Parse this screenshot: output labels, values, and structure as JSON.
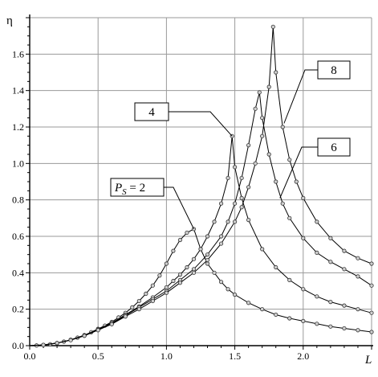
{
  "chart_data": {
    "type": "line",
    "xlabel": "L",
    "ylabel": "η",
    "xlim": [
      0.0,
      2.5
    ],
    "ylim": [
      0.0,
      1.8
    ],
    "grid": true,
    "x_ticks": [
      "0.0",
      "0.5",
      "1.0",
      "1.5",
      "2.0"
    ],
    "y_ticks": [
      "0.0",
      "0.2",
      "0.4",
      "0.6",
      "0.8",
      "1.0",
      "1.2",
      "1.4",
      "1.6"
    ],
    "series": [
      {
        "name": "2",
        "label_prefix": "P",
        "label_sub": "S",
        "label_suffix": " = 2",
        "x": [
          0.0,
          0.05,
          0.1,
          0.15,
          0.2,
          0.25,
          0.3,
          0.35,
          0.4,
          0.45,
          0.5,
          0.55,
          0.6,
          0.65,
          0.7,
          0.75,
          0.8,
          0.85,
          0.9,
          0.95,
          1.0,
          1.05,
          1.1,
          1.15,
          1.2,
          1.25,
          1.3,
          1.35,
          1.4,
          1.45,
          1.5,
          1.6,
          1.7,
          1.8,
          1.9,
          2.0,
          2.1,
          2.2,
          2.3,
          2.4,
          2.5
        ],
        "y": [
          0.0,
          0.001,
          0.004,
          0.008,
          0.014,
          0.022,
          0.032,
          0.044,
          0.058,
          0.074,
          0.092,
          0.11,
          0.13,
          0.155,
          0.18,
          0.21,
          0.245,
          0.285,
          0.33,
          0.385,
          0.45,
          0.52,
          0.58,
          0.62,
          0.64,
          0.53,
          0.45,
          0.4,
          0.35,
          0.31,
          0.28,
          0.235,
          0.2,
          0.17,
          0.15,
          0.135,
          0.12,
          0.105,
          0.095,
          0.085,
          0.075
        ]
      },
      {
        "name": "4",
        "x": [
          0.0,
          0.1,
          0.2,
          0.3,
          0.4,
          0.5,
          0.6,
          0.7,
          0.8,
          0.9,
          1.0,
          1.05,
          1.1,
          1.15,
          1.2,
          1.25,
          1.3,
          1.35,
          1.4,
          1.45,
          1.48,
          1.5,
          1.55,
          1.6,
          1.7,
          1.8,
          1.9,
          2.0,
          2.1,
          2.2,
          2.3,
          2.4,
          2.5
        ],
        "y": [
          0.0,
          0.004,
          0.014,
          0.032,
          0.057,
          0.09,
          0.125,
          0.17,
          0.215,
          0.265,
          0.32,
          0.355,
          0.39,
          0.43,
          0.475,
          0.53,
          0.6,
          0.68,
          0.78,
          0.92,
          1.15,
          0.98,
          0.81,
          0.69,
          0.53,
          0.43,
          0.36,
          0.31,
          0.27,
          0.24,
          0.22,
          0.2,
          0.18
        ]
      },
      {
        "name": "6",
        "x": [
          0.0,
          0.1,
          0.2,
          0.3,
          0.4,
          0.5,
          0.6,
          0.7,
          0.8,
          0.9,
          1.0,
          1.1,
          1.2,
          1.3,
          1.4,
          1.45,
          1.5,
          1.55,
          1.6,
          1.65,
          1.68,
          1.7,
          1.75,
          1.8,
          1.85,
          1.9,
          2.0,
          2.1,
          2.2,
          2.3,
          2.4,
          2.5
        ],
        "y": [
          0.0,
          0.004,
          0.014,
          0.031,
          0.055,
          0.087,
          0.12,
          0.165,
          0.21,
          0.255,
          0.3,
          0.36,
          0.42,
          0.5,
          0.6,
          0.68,
          0.78,
          0.92,
          1.1,
          1.3,
          1.39,
          1.25,
          1.05,
          0.9,
          0.78,
          0.7,
          0.59,
          0.51,
          0.46,
          0.42,
          0.38,
          0.33
        ]
      },
      {
        "name": "8",
        "x": [
          0.0,
          0.1,
          0.2,
          0.3,
          0.4,
          0.5,
          0.6,
          0.7,
          0.8,
          0.9,
          1.0,
          1.1,
          1.2,
          1.3,
          1.4,
          1.5,
          1.55,
          1.6,
          1.65,
          1.7,
          1.75,
          1.78,
          1.8,
          1.85,
          1.9,
          1.95,
          2.0,
          2.1,
          2.2,
          2.3,
          2.4,
          2.5
        ],
        "y": [
          0.0,
          0.004,
          0.014,
          0.03,
          0.054,
          0.085,
          0.118,
          0.16,
          0.2,
          0.245,
          0.29,
          0.345,
          0.4,
          0.47,
          0.56,
          0.68,
          0.76,
          0.87,
          1.0,
          1.15,
          1.42,
          1.75,
          1.5,
          1.2,
          1.02,
          0.9,
          0.81,
          0.68,
          0.59,
          0.52,
          0.48,
          0.45
        ]
      }
    ],
    "annotations": [
      {
        "series": "2",
        "text_prefix": "P",
        "text_sub": "S",
        "text_suffix": " = 2",
        "target": [
          1.2,
          0.64
        ]
      },
      {
        "series": "4",
        "text": "4",
        "target": [
          1.48,
          1.15
        ]
      },
      {
        "series": "6",
        "text": "6",
        "target": [
          1.83,
          0.81
        ]
      },
      {
        "series": "8",
        "text": "8",
        "target": [
          1.86,
          1.22
        ]
      }
    ]
  }
}
